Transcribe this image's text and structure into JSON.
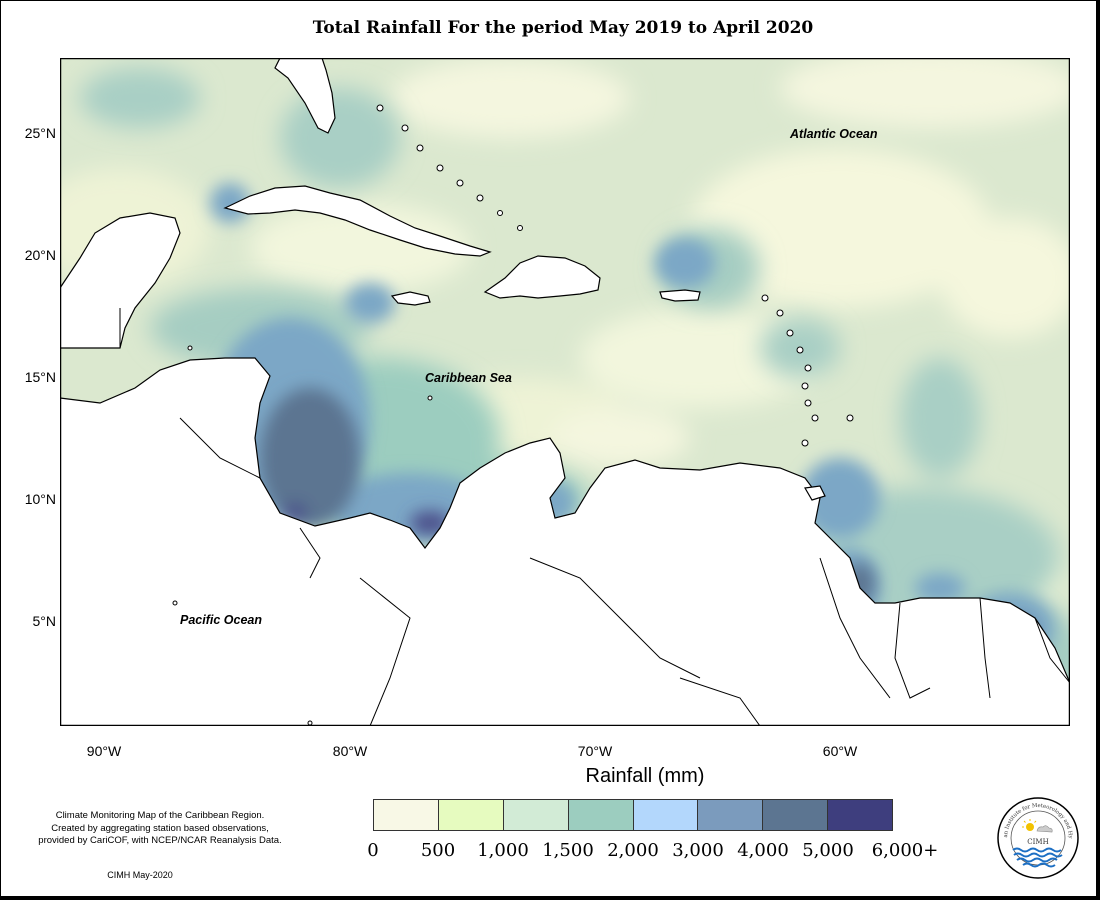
{
  "title": "Total Rainfall For the period May 2019 to April 2020",
  "map": {
    "lat_labels": [
      "25°N",
      "20°N",
      "15°N",
      "10°N",
      "5°N"
    ],
    "lon_labels": [
      "90°W",
      "80°W",
      "70°W",
      "60°W"
    ],
    "ocean_labels": {
      "atlantic": "Atlantic Ocean",
      "caribbean": "Caribbean Sea",
      "pacific": "Pacific Ocean"
    }
  },
  "legend": {
    "title": "Rainfall (mm)",
    "colors": [
      "#f8f8e6",
      "#e6fbbf",
      "#d2ebd6",
      "#9ccdbf",
      "#b3d7fc",
      "#7b9bbd",
      "#5c7591",
      "#3e3e7e"
    ],
    "ticks": [
      "0",
      "500",
      "1,000",
      "1,500",
      "2,000",
      "3,000",
      "4,000",
      "5,000",
      "6,000+"
    ]
  },
  "note": {
    "line1": "Climate Monitoring Map of the Caribbean Region.",
    "line2": "Created by aggregating station based observations,",
    "line3": "provided by CariCOF, with NCEP/NCAR Reanalysis Data."
  },
  "credit": "CIMH May-2020",
  "logo": {
    "arc_text": "Caribbean Institute for Meteorology and Hydrology",
    "center_text": "CIMH"
  }
}
